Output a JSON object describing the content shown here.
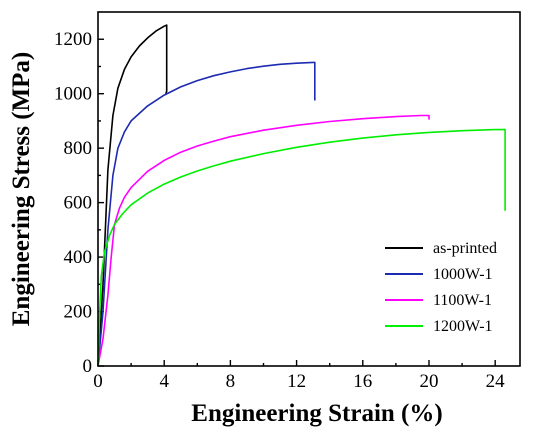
{
  "chart_data": {
    "type": "line",
    "title": "",
    "xlabel": "Engineering Strain (%)",
    "ylabel": "Engineering Stress (MPa)",
    "xlim": [
      0,
      25.5
    ],
    "ylim": [
      0,
      1300
    ],
    "xticks": [
      0,
      4,
      8,
      12,
      16,
      20,
      24
    ],
    "yticks": [
      0,
      200,
      400,
      600,
      800,
      1000,
      1200
    ],
    "grid": false,
    "legend_position": "bottom-right",
    "series": [
      {
        "name": "as-printed",
        "color": "#000000",
        "points": [
          [
            0,
            0
          ],
          [
            0.3,
            300
          ],
          [
            0.6,
            720
          ],
          [
            0.9,
            920
          ],
          [
            1.2,
            1020
          ],
          [
            1.6,
            1090
          ],
          [
            2.0,
            1135
          ],
          [
            2.5,
            1175
          ],
          [
            3.0,
            1205
          ],
          [
            3.5,
            1230
          ],
          [
            4.0,
            1248
          ],
          [
            4.15,
            1252
          ],
          [
            4.15,
            1010
          ],
          [
            4.1,
            1000
          ]
        ]
      },
      {
        "name": "1000W-1",
        "color": "#1c2bb0",
        "points": [
          [
            0,
            0
          ],
          [
            0.3,
            200
          ],
          [
            0.6,
            500
          ],
          [
            0.9,
            700
          ],
          [
            1.2,
            800
          ],
          [
            1.6,
            860
          ],
          [
            2.0,
            900
          ],
          [
            3.0,
            955
          ],
          [
            4.0,
            995
          ],
          [
            5.0,
            1025
          ],
          [
            6.0,
            1048
          ],
          [
            7.0,
            1066
          ],
          [
            8.0,
            1080
          ],
          [
            9.0,
            1092
          ],
          [
            10.0,
            1101
          ],
          [
            11.0,
            1108
          ],
          [
            12.0,
            1112
          ],
          [
            13.0,
            1115
          ],
          [
            13.1,
            1115
          ],
          [
            13.1,
            975
          ]
        ]
      },
      {
        "name": "1100W-1",
        "color": "#ff00ff",
        "points": [
          [
            0,
            0
          ],
          [
            0.3,
            100
          ],
          [
            0.6,
            260
          ],
          [
            0.8,
            400
          ],
          [
            1.0,
            520
          ],
          [
            1.3,
            580
          ],
          [
            1.6,
            620
          ],
          [
            2.0,
            655
          ],
          [
            3.0,
            715
          ],
          [
            4.0,
            755
          ],
          [
            5.0,
            785
          ],
          [
            6.0,
            808
          ],
          [
            7.0,
            826
          ],
          [
            8.0,
            842
          ],
          [
            10.0,
            866
          ],
          [
            12.0,
            884
          ],
          [
            14.0,
            898
          ],
          [
            16.0,
            908
          ],
          [
            18.0,
            916
          ],
          [
            19.5,
            920
          ],
          [
            20.0,
            920
          ],
          [
            20.0,
            905
          ]
        ]
      },
      {
        "name": "1200W-1",
        "color": "#00ee00",
        "points": [
          [
            0,
            0
          ],
          [
            0.1,
            200
          ],
          [
            0.2,
            330
          ],
          [
            0.4,
            420
          ],
          [
            0.7,
            480
          ],
          [
            1.0,
            520
          ],
          [
            1.5,
            560
          ],
          [
            2.0,
            592
          ],
          [
            3.0,
            635
          ],
          [
            4.0,
            668
          ],
          [
            5.0,
            694
          ],
          [
            6.0,
            716
          ],
          [
            7.0,
            735
          ],
          [
            8.0,
            752
          ],
          [
            10.0,
            780
          ],
          [
            12.0,
            803
          ],
          [
            14.0,
            822
          ],
          [
            16.0,
            837
          ],
          [
            18.0,
            849
          ],
          [
            20.0,
            858
          ],
          [
            22.0,
            864
          ],
          [
            24.0,
            868
          ],
          [
            24.6,
            868
          ],
          [
            24.6,
            570
          ]
        ]
      }
    ]
  }
}
